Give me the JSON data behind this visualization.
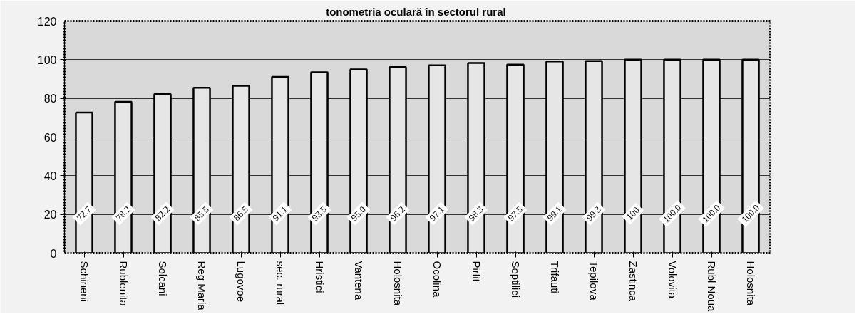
{
  "chart_data": {
    "type": "bar",
    "title": "tonometria oculară  în sectorul rural",
    "categories": [
      "Schineni",
      "Rublenita",
      "Solcani",
      "Reg Maria",
      "Lugovoe",
      "sec. rural",
      "Hristici",
      "Vantena",
      "Holosnita",
      "Ocolina",
      "Pirlit",
      "Septilici",
      "Trifauti",
      "Tepilova",
      "Zastinca",
      "Volovita",
      "Rubl Noua",
      "Holosnita"
    ],
    "values": [
      72.7,
      78.2,
      82.2,
      85.5,
      86.5,
      91.1,
      93.5,
      95.0,
      96.2,
      97.1,
      98.3,
      97.5,
      99.1,
      99.3,
      100,
      100.0,
      100.0,
      100.0
    ],
    "value_labels": [
      "72.7",
      "78.2",
      "82.2",
      "85.5",
      "86.5",
      "91.1",
      "93.5",
      "95.0",
      "96.2",
      "97.1",
      "98.3",
      "97.5",
      "99.1",
      "99.3",
      "100",
      "100.0",
      "100.0",
      "100.0"
    ],
    "color": "#e6e6e6",
    "ylim": [
      0,
      120
    ],
    "yticks": [
      0,
      20,
      40,
      60,
      80,
      100,
      120
    ],
    "grid": "y"
  }
}
